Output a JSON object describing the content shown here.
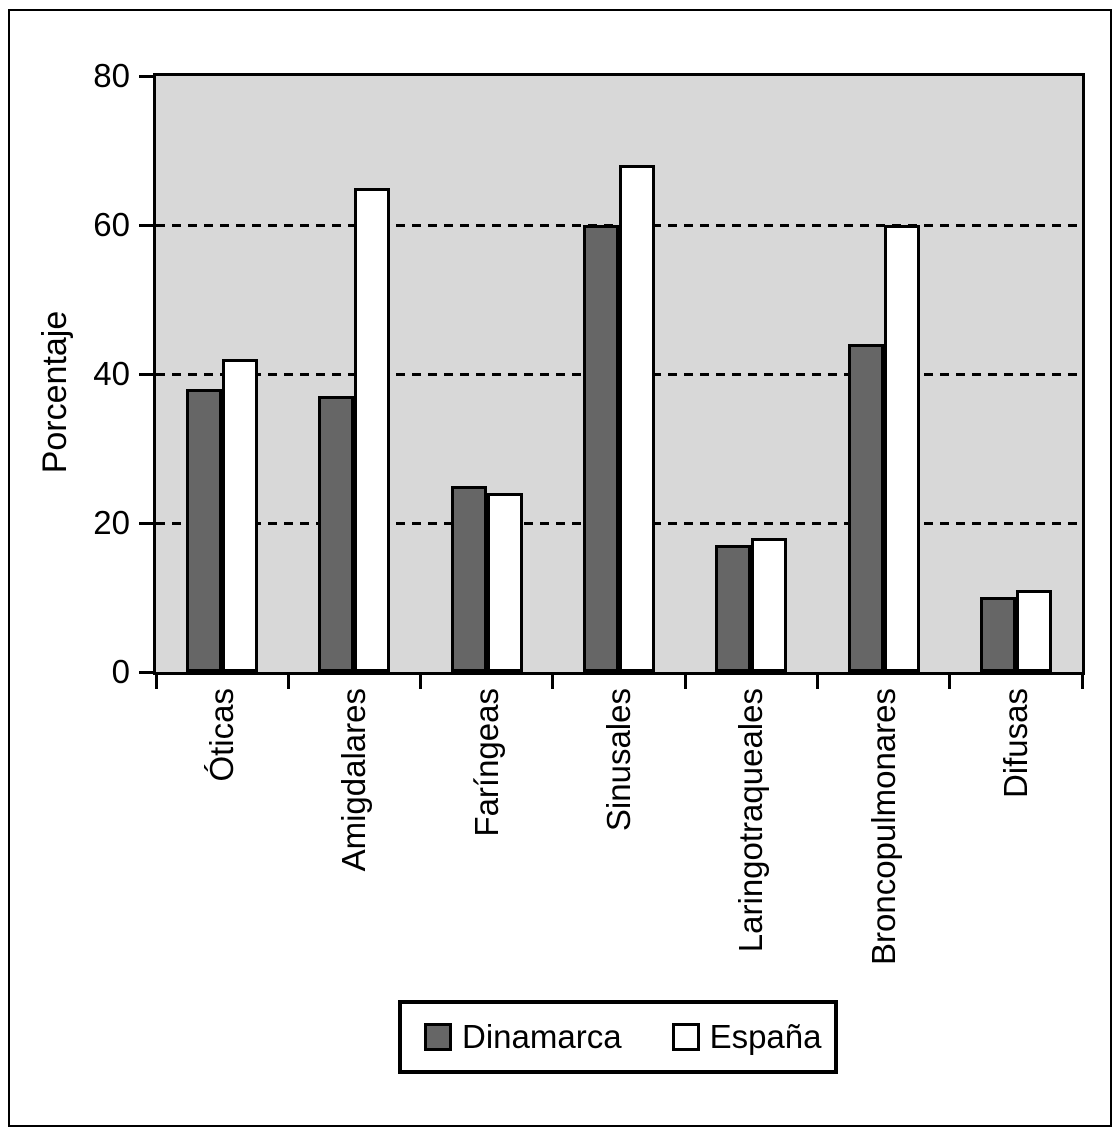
{
  "chart_data": {
    "type": "bar",
    "title": "",
    "xlabel": "",
    "ylabel": "Porcentaje",
    "ylim": [
      0,
      80
    ],
    "yticks": [
      0,
      20,
      40,
      60,
      80
    ],
    "gridlines": [
      20,
      40,
      60
    ],
    "grid_style": "dashed",
    "legend_position": "bottom-center",
    "plot_background": "#d8d8d8",
    "axis_color": "#000000",
    "categories": [
      "Óticas",
      "Amigdalares",
      "Faríngeas",
      "Sinusales",
      "Laringotraqueales",
      "Broncopulmonares",
      "Difusas"
    ],
    "series": [
      {
        "name": "Dinamarca",
        "color": "#666666",
        "values": [
          38,
          37,
          25,
          60,
          17,
          44,
          10
        ]
      },
      {
        "name": "España",
        "color": "#ffffff",
        "values": [
          42,
          65,
          24,
          68,
          18,
          60,
          11
        ]
      }
    ]
  }
}
